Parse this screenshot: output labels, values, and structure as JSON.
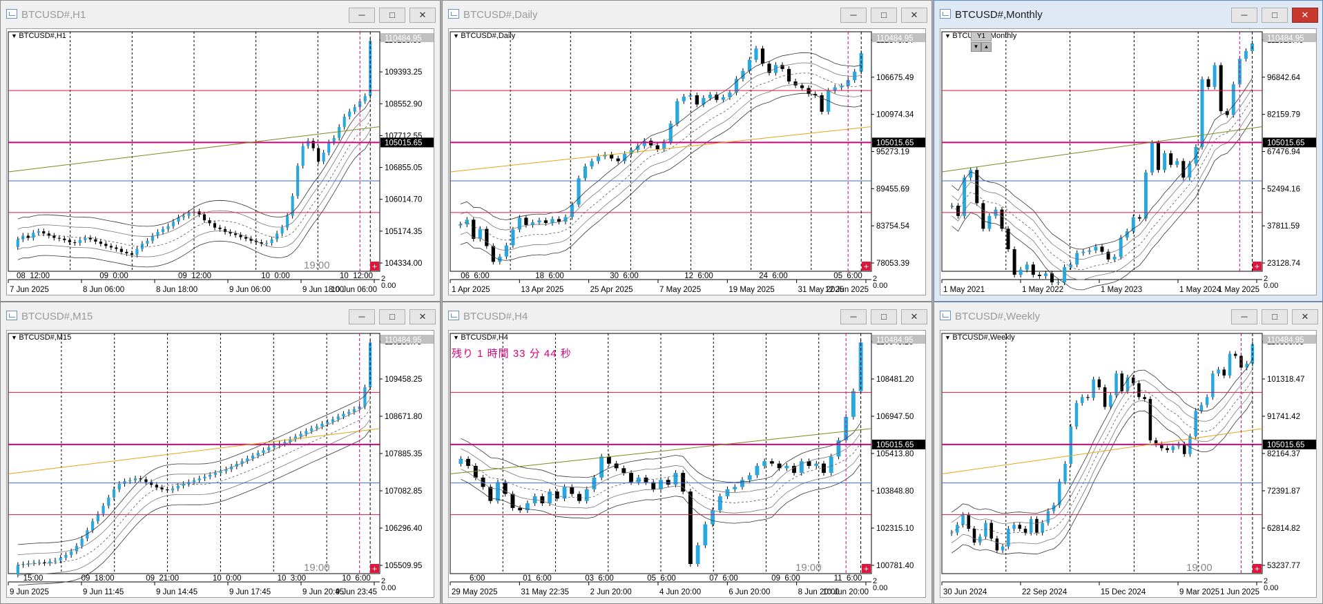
{
  "windows": [
    {
      "title": "BTCUSD#,H1",
      "label": "BTCUSD#,H1",
      "active": false,
      "price_ticks": [
        "110233.60",
        "109393.25",
        "108552.90",
        "107712.55",
        "106855.05",
        "106014.70",
        "105174.35",
        "104334.00"
      ],
      "top_badge": "110484.95",
      "bid_badge": "105015.65",
      "time_ticks": [
        "08_12:00",
        "09_0:00",
        "09_12:00",
        "10_0:00",
        "10_12:00"
      ],
      "date_ticks": [
        "7 Jun 2025",
        "8 Jun 06:00",
        "8 Jun 18:00",
        "9 Jun 06:00",
        "9 Jun 18:00",
        "10 Jun 06:00"
      ],
      "timer": "19:00",
      "corner": "2",
      "corner2": "0.00"
    },
    {
      "title": "BTCUSD#,Daily",
      "label": "BTCUSD#,Daily",
      "active": false,
      "price_ticks": [
        "112376.64",
        "106675.49",
        "100974.34",
        "95273.19",
        "89455.69",
        "83754.54",
        "78053.39"
      ],
      "top_badge": "110484.95",
      "bid_badge": "105015.65",
      "time_ticks": [
        "06_6:00",
        "18_6:00",
        "30_6:00",
        "12_6:00",
        "24_6:00",
        "05_6:00"
      ],
      "date_ticks": [
        "1 Apr 2025",
        "13 Apr 2025",
        "25 Apr 2025",
        "7 May 2025",
        "19 May 2025",
        "31 May 2025",
        "12 Jun 2025"
      ],
      "timer": "",
      "corner": "2",
      "corner2": "0.00"
    },
    {
      "title": "BTCUSD#,Monthly",
      "label": "BTCUSD#,Monthly",
      "active": true,
      "price_ticks": [
        "111525.40",
        "96842.64",
        "82159.79",
        "67476.94",
        "52494.16",
        "37811.59",
        "23128.74"
      ],
      "top_badge": "110484.95",
      "bid_badge": "105015.65",
      "time_ticks": [],
      "date_ticks": [
        "1 May 2021",
        "1 May 2022",
        "1 May 2023",
        "1 May 2024",
        "1 May 2025"
      ],
      "timer": "",
      "corner": "2",
      "corner2": "0.00",
      "y1_label": "Y1"
    },
    {
      "title": "BTCUSD#,M15",
      "label": "BTCUSD#,M15",
      "active": false,
      "price_ticks": [
        "110260.75",
        "109458.25",
        "108671.80",
        "107885.35",
        "107082.85",
        "106296.40",
        "105509.95"
      ],
      "top_badge": "110484.95",
      "bid_badge": "",
      "time_ticks": [
        "15:00",
        "09_18:00",
        "09_21:00",
        "10_0:00",
        "10_3:00",
        "10_6:00"
      ],
      "date_ticks": [
        "9 Jun 2025",
        "9 Jun 11:45",
        "9 Jun 14:45",
        "9 Jun 17:45",
        "9 Jun 20:45",
        "9 Jun 23:45"
      ],
      "timer": "19:00",
      "corner": "2",
      "corner2": "0.00"
    },
    {
      "title": "BTCUSD#,H4",
      "label": "BTCUSD#,H4",
      "active": false,
      "price_ticks": [
        "110046.20",
        "108481.20",
        "106947.50",
        "105413.80",
        "103848.80",
        "102315.10",
        "100781.40"
      ],
      "top_badge": "110484.95",
      "bid_badge": "105015.65",
      "time_ticks": [
        "_6:00",
        "01_6:00",
        "03_6:00",
        "05_6:00",
        "07_6:00",
        "09_6:00",
        "11_6:00"
      ],
      "date_ticks": [
        "29 May 2025",
        "31 May 22:35",
        "2 Jun 20:00",
        "4 Jun 20:00",
        "6 Jun 20:00",
        "8 Jun 20:00",
        "10 Jun 20:00"
      ],
      "timer": "19:00",
      "corner": "2",
      "corner2": "0.00",
      "countdown": "残り 1 時間 33 分 44 秒"
    },
    {
      "title": "BTCUSD#,Weekly",
      "label": "BTCUSD#,Weekly",
      "active": false,
      "price_ticks": [
        "110895.05",
        "101318.47",
        "91741.42",
        "82164.37",
        "72391.87",
        "62814.82",
        "53237.77"
      ],
      "top_badge": "110484.95",
      "bid_badge": "105015.65",
      "time_ticks": [],
      "date_ticks": [
        "30 Jun 2024",
        "22 Sep 2024",
        "15 Dec 2024",
        "9 Mar 2025",
        "1 Jun 2025"
      ],
      "timer": "19:00",
      "corner": "2",
      "corner2": "0.00"
    }
  ],
  "controls": {
    "minimize": "─",
    "maximize": "□",
    "close": "✕"
  },
  "colors": {
    "bull": "#29a8e0",
    "bear": "#000000",
    "band": "#333333",
    "magenta": "#d6007a",
    "red": "#e0143c",
    "gold": "#e8a317",
    "olive": "#7a8a1a",
    "blue": "#3a6ad8"
  },
  "chart_data": [
    {
      "type": "candlestick",
      "symbol": "BTCUSD#",
      "timeframe": "H1",
      "ylim": [
        104334,
        110484.95
      ],
      "closes": [
        105080,
        105180,
        105120,
        105260,
        105300,
        105240,
        105180,
        105120,
        105100,
        105060,
        105000,
        104980,
        105060,
        105120,
        105080,
        105020,
        104960,
        104900,
        104860,
        104820,
        104740,
        104700,
        104660,
        104820,
        104960,
        105040,
        105180,
        105280,
        105360,
        105440,
        105560,
        105680,
        105720,
        105800,
        105840,
        105760,
        105600,
        105520,
        105400,
        105360,
        105280,
        105240,
        105200,
        105140,
        105100,
        105040,
        105000,
        104960,
        104980,
        105080,
        105240,
        105400,
        105720,
        106260,
        107080,
        107620,
        107760,
        107560,
        107200,
        107440,
        107720,
        107840,
        108140,
        108420,
        108560,
        108680,
        108840,
        108980,
        110484
      ]
    },
    {
      "type": "candlestick",
      "symbol": "BTCUSD#",
      "timeframe": "Daily",
      "ylim": [
        78053.39,
        112376.64
      ],
      "closes": [
        84500,
        85200,
        82300,
        83800,
        81200,
        78800,
        79600,
        81300,
        83700,
        85500,
        84400,
        84800,
        85100,
        84700,
        85300,
        84900,
        85600,
        87500,
        91500,
        93300,
        94100,
        94800,
        95100,
        94500,
        94100,
        95200,
        95800,
        96400,
        97200,
        96500,
        95900,
        97000,
        99800,
        103200,
        103900,
        104100,
        102700,
        103700,
        104200,
        103400,
        103800,
        104500,
        106600,
        107800,
        109500,
        111200,
        108900,
        107500,
        108700,
        108100,
        106200,
        105600,
        105200,
        104300,
        104100,
        101600,
        104800,
        105300,
        105500,
        106400,
        107700,
        110484
      ]
    },
    {
      "type": "candlestick",
      "symbol": "BTCUSD#",
      "timeframe": "Monthly",
      "ylim": [
        23128.74,
        111525.4
      ],
      "closes": [
        47000,
        43000,
        58000,
        61000,
        48000,
        38000,
        43000,
        45500,
        38000,
        30000,
        20000,
        22000,
        24000,
        20000,
        19500,
        20500,
        17000,
        17000,
        23000,
        24000,
        28500,
        29000,
        29500,
        31000,
        29000,
        26000,
        27000,
        34500,
        37000,
        42500,
        42000,
        60000,
        71500,
        61000,
        67500,
        63000,
        64500,
        58000,
        63500,
        70000,
        96500,
        93500,
        102000,
        84000,
        82500,
        94500,
        104500,
        107500,
        110484
      ]
    },
    {
      "type": "candlestick",
      "symbol": "BTCUSD#",
      "timeframe": "M15",
      "ylim": [
        105509.95,
        110484.95
      ],
      "closes": [
        105600,
        105620,
        105640,
        105650,
        105660,
        105640,
        105680,
        105700,
        105760,
        105820,
        105900,
        106020,
        106180,
        106360,
        106560,
        106720,
        106900,
        107080,
        107260,
        107380,
        107440,
        107460,
        107500,
        107480,
        107420,
        107360,
        107300,
        107260,
        107240,
        107280,
        107340,
        107380,
        107420,
        107460,
        107500,
        107540,
        107580,
        107620,
        107660,
        107700,
        107760,
        107820,
        107880,
        107940,
        108000,
        108060,
        108120,
        108180,
        108220,
        108260,
        108300,
        108360,
        108420,
        108480,
        108540,
        108600,
        108640,
        108700,
        108740,
        108800,
        108860,
        108920,
        108960,
        109020,
        109080,
        109500,
        110484
      ]
    },
    {
      "type": "candlestick",
      "symbol": "BTCUSD#",
      "timeframe": "H4",
      "ylim": [
        100781.4,
        110484.95
      ],
      "closes": [
        105500,
        105200,
        104700,
        104300,
        103700,
        104500,
        104000,
        103400,
        103300,
        103600,
        103900,
        103600,
        104100,
        103800,
        104300,
        104000,
        103700,
        104200,
        104700,
        105600,
        105300,
        105100,
        104900,
        104500,
        104700,
        104500,
        104200,
        104600,
        104400,
        104900,
        104100,
        101000,
        101800,
        102700,
        103300,
        103900,
        104200,
        104300,
        104600,
        104800,
        105200,
        105400,
        105300,
        105100,
        105200,
        104900,
        105400,
        105200,
        105300,
        104900,
        105600,
        106300,
        107300,
        108400,
        110484
      ]
    },
    {
      "type": "candlestick",
      "symbol": "BTCUSD#",
      "timeframe": "Weekly",
      "ylim": [
        53237.77,
        110895.05
      ],
      "closes": [
        62500,
        64500,
        67000,
        63500,
        60000,
        61500,
        65000,
        61000,
        58000,
        59000,
        63500,
        64500,
        63500,
        62500,
        66000,
        62500,
        65000,
        68000,
        69500,
        75500,
        80000,
        89500,
        95500,
        97000,
        96800,
        101500,
        99500,
        94500,
        97500,
        103000,
        98500,
        102000,
        100500,
        97000,
        96500,
        86000,
        85000,
        84000,
        83500,
        84500,
        85000,
        82500,
        87000,
        93500,
        95000,
        97000,
        103000,
        104000,
        102500,
        108000,
        107500,
        104500,
        105500,
        110484
      ]
    }
  ]
}
